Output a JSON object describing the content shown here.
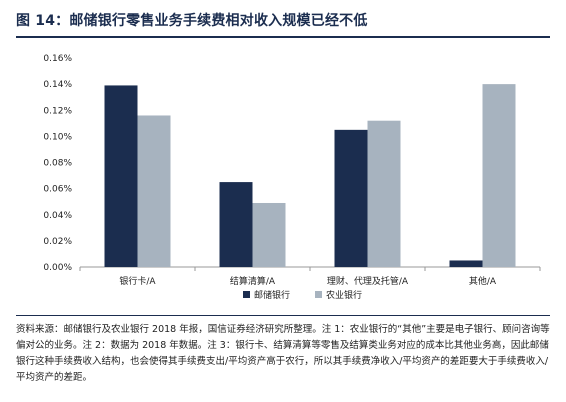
{
  "header": {
    "title": "图 14：邮储银行零售业务手续费相对收入规模已经不低"
  },
  "chart_data": {
    "type": "bar",
    "categories": [
      "银行卡/A",
      "结算清算/A",
      "理财、代理及托管/A",
      "其他/A"
    ],
    "series": [
      {
        "name": "邮储银行",
        "color": "#1b2d4f",
        "values": [
          0.139,
          0.065,
          0.105,
          0.005
        ]
      },
      {
        "name": "农业银行",
        "color": "#a7b3bf",
        "values": [
          0.116,
          0.049,
          0.112,
          0.14
        ]
      }
    ],
    "yticks": [
      "0.00%",
      "0.02%",
      "0.04%",
      "0.06%",
      "0.08%",
      "0.10%",
      "0.12%",
      "0.14%",
      "0.16%"
    ],
    "ylim": [
      0,
      0.16
    ],
    "grid": false,
    "legend": "bottom-center",
    "title": "",
    "xlabel": "",
    "ylabel": ""
  },
  "note": "资料来源：邮储银行及农业银行 2018 年报，国信证券经济研究所整理。注 1：农业银行的“其他”主要是电子银行、顾问咨询等偏对公的业务。注 2：数据为 2018 年数据。注 3：银行卡、结算清算等零售及结算类业务对应的成本比其他业务高，因此邮储银行这种手续费收入结构，也会使得其手续费支出/平均资产高于农行，所以其手续费净收入/平均资产的差距要大于手续费收入/平均资产的差距。"
}
